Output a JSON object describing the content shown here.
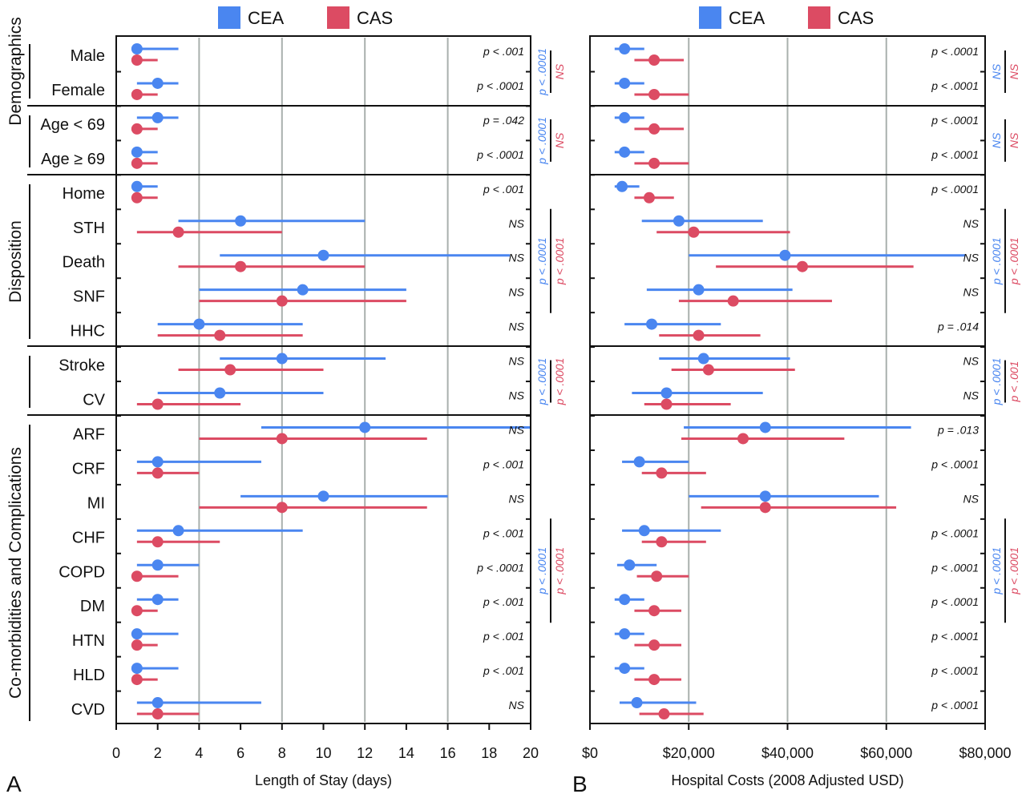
{
  "legend": [
    {
      "name": "CEA",
      "color": "#4a86f0"
    },
    {
      "name": "CAS",
      "color": "#dc4b63"
    }
  ],
  "groups": [
    {
      "name": "Demographics",
      "rows": [
        0,
        1
      ]
    },
    {
      "name": "",
      "rows": [
        2,
        3
      ]
    },
    {
      "name": "Disposition",
      "rows": [
        4,
        8
      ]
    },
    {
      "name": "",
      "rows": [
        9,
        10
      ]
    },
    {
      "name": "Co-morbidities and Complications",
      "rows": [
        11,
        19
      ]
    }
  ],
  "categories": [
    "Male",
    "Female",
    "Age < 69",
    "Age ≥ 69",
    "Home",
    "STH",
    "Death",
    "SNF",
    "HHC",
    "Stroke",
    "CV",
    "ARF",
    "CRF",
    "MI",
    "CHF",
    "COPD",
    "DM",
    "HTN",
    "HLD",
    "CVD"
  ],
  "chart_data": [
    {
      "type": "scatter",
      "panel_letter": "A",
      "xlabel": "Length of Stay (days)",
      "xlim": [
        0,
        20
      ],
      "xticks": [
        0,
        2,
        4,
        6,
        8,
        10,
        12,
        14,
        16,
        18,
        20
      ],
      "xtick_labels": [
        "0",
        "2",
        "4",
        "6",
        "8",
        "10",
        "12",
        "14",
        "16",
        "18",
        "20"
      ],
      "gridlines": [
        4,
        8,
        12,
        16
      ],
      "series": [
        {
          "name": "CEA",
          "color": "#4a86f0",
          "median": [
            1,
            2,
            2,
            1,
            1,
            6,
            10,
            9,
            4,
            8,
            5,
            12,
            2,
            10,
            3,
            2,
            2,
            1,
            1,
            2
          ],
          "low": [
            1,
            1,
            1,
            1,
            1,
            3,
            5,
            4,
            2,
            5,
            2,
            7,
            1,
            6,
            1,
            1,
            1,
            1,
            1,
            1
          ],
          "high": [
            3,
            3,
            3,
            2,
            2,
            12,
            19,
            14,
            9,
            13,
            10,
            20,
            7,
            16,
            9,
            4,
            3,
            3,
            3,
            7
          ]
        },
        {
          "name": "CAS",
          "color": "#dc4b63",
          "median": [
            1,
            1,
            1,
            1,
            1,
            3,
            6,
            8,
            5,
            5.5,
            2,
            8,
            2,
            8,
            2,
            1,
            1,
            1,
            1,
            2
          ],
          "low": [
            1,
            1,
            1,
            1,
            1,
            1,
            3,
            4,
            2,
            3,
            1,
            4,
            1,
            4,
            1,
            1,
            1,
            1,
            1,
            1
          ],
          "high": [
            2,
            2,
            2,
            2,
            2,
            8,
            12,
            14,
            9,
            10,
            6,
            15,
            4,
            15,
            5,
            3,
            2,
            2,
            2,
            4
          ]
        }
      ],
      "pvalues": [
        "p < .001",
        "p < .0001",
        "p = .042",
        "p < .0001",
        "p < .001",
        "NS",
        "NS",
        "NS",
        "NS",
        "NS",
        "NS",
        "NS",
        "p < .001",
        "NS",
        "p < .001",
        "p < .0001",
        "p < .001",
        "p < .001",
        "p < .001",
        "NS"
      ],
      "bracket_labels": [
        {
          "rows": [
            0,
            1
          ],
          "CEA": "p < .0001",
          "CAS": "NS"
        },
        {
          "rows": [
            2,
            3
          ],
          "CEA": "p < .0001",
          "CAS": "NS"
        },
        {
          "rows": [
            4,
            8
          ],
          "CEA": "p < .0001",
          "CAS": "p < .0001"
        },
        {
          "rows": [
            9,
            10
          ],
          "CEA": "p < .0001",
          "CAS": "p < .0001"
        },
        {
          "rows": [
            11,
            19
          ],
          "CEA": "p < .0001",
          "CAS": "p < .0001"
        }
      ]
    },
    {
      "type": "scatter",
      "panel_letter": "B",
      "xlabel": "Hospital Costs (2008 Adjusted USD)",
      "xlim": [
        0,
        80000
      ],
      "xticks": [
        0,
        20000,
        40000,
        60000,
        80000
      ],
      "xtick_labels": [
        "$0",
        "$20,000",
        "$40,000",
        "$60,000",
        "$80,000"
      ],
      "gridlines": [
        20000,
        40000,
        60000
      ],
      "series": [
        {
          "name": "CEA",
          "color": "#4a86f0",
          "median": [
            7000,
            7000,
            7000,
            7000,
            6500,
            18000,
            39500,
            22000,
            12500,
            23000,
            15500,
            35500,
            10000,
            35500,
            11000,
            8000,
            7000,
            7000,
            7000,
            9500
          ],
          "low": [
            5000,
            5000,
            5000,
            5000,
            5000,
            10500,
            20000,
            11500,
            7000,
            14000,
            8500,
            19000,
            6500,
            20000,
            6500,
            5500,
            5000,
            5000,
            5000,
            6000
          ],
          "high": [
            11000,
            11000,
            11000,
            11000,
            10000,
            35000,
            76000,
            41000,
            26500,
            40500,
            35000,
            65000,
            20000,
            58500,
            26500,
            13500,
            11000,
            11000,
            11000,
            21500
          ]
        },
        {
          "name": "CAS",
          "color": "#dc4b63",
          "median": [
            13000,
            13000,
            13000,
            13000,
            12000,
            21000,
            43000,
            29000,
            22000,
            24000,
            15500,
            31000,
            14500,
            35500,
            14500,
            13500,
            13000,
            13000,
            13000,
            15000
          ],
          "low": [
            9000,
            9000,
            9000,
            9000,
            9000,
            13500,
            25500,
            18000,
            14000,
            16500,
            11000,
            18500,
            10500,
            22500,
            10500,
            9500,
            9000,
            9000,
            9000,
            10000
          ],
          "high": [
            19000,
            20000,
            19000,
            20000,
            17000,
            40500,
            65500,
            49000,
            34500,
            41500,
            28500,
            51500,
            23500,
            62000,
            23500,
            20000,
            18500,
            18500,
            18500,
            23000
          ]
        }
      ],
      "pvalues": [
        "p < .0001",
        "p < .0001",
        "p < .0001",
        "p < .0001",
        "p < .0001",
        "NS",
        "NS",
        "NS",
        "p = .014",
        "NS",
        "NS",
        "p = .013",
        "p < .0001",
        "NS",
        "p < .0001",
        "p < .0001",
        "p < .0001",
        "p < .0001",
        "p < .0001",
        "p < .0001"
      ],
      "bracket_labels": [
        {
          "rows": [
            0,
            1
          ],
          "CEA": "NS",
          "CAS": "NS"
        },
        {
          "rows": [
            2,
            3
          ],
          "CEA": "NS",
          "CAS": "NS"
        },
        {
          "rows": [
            4,
            8
          ],
          "CEA": "p < .0001",
          "CAS": "p < .0001"
        },
        {
          "rows": [
            9,
            10
          ],
          "CEA": "p < .0001",
          "CAS": "p < .001"
        },
        {
          "rows": [
            11,
            19
          ],
          "CEA": "p < .0001",
          "CAS": "p < .0001"
        }
      ]
    }
  ]
}
